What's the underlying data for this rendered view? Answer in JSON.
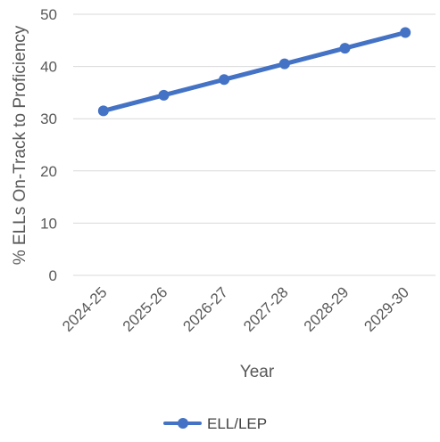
{
  "chart_data": {
    "type": "line",
    "categories": [
      "2024-25",
      "2025-26",
      "2026-27",
      "2027-28",
      "2028-29",
      "2029-30"
    ],
    "series": [
      {
        "name": "ELL/LEP",
        "values": [
          31.5,
          34.5,
          37.5,
          40.5,
          43.5,
          46.5
        ],
        "color": "#4472c4"
      }
    ],
    "xlabel": "Year",
    "ylabel": "% ELLs On-Track to Proficiency",
    "ylim": [
      0,
      50
    ],
    "yticks": [
      0,
      10,
      20,
      30,
      40,
      50
    ],
    "grid": true,
    "legend_position": "bottom"
  }
}
